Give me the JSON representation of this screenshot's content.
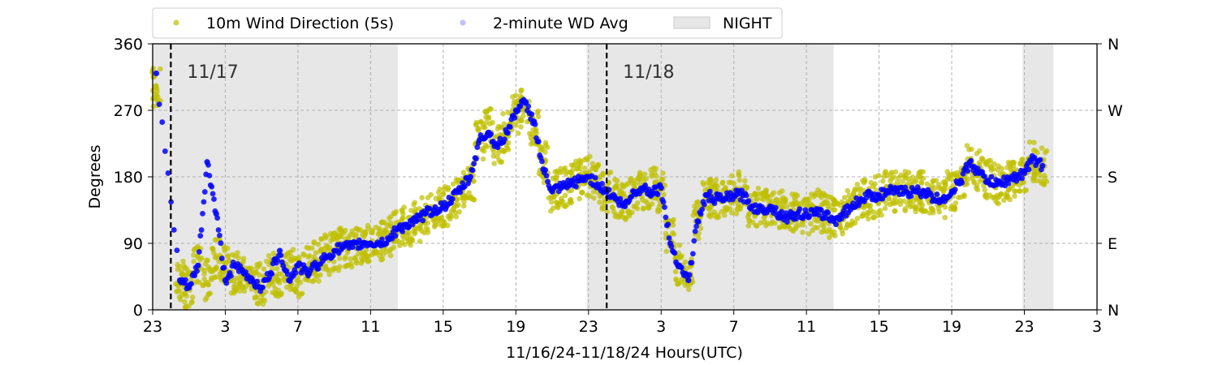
{
  "chart_data": {
    "type": "scatter",
    "xlabel": "11/16/24-11/18/24  Hours(UTC)",
    "ylabel": "Degrees",
    "x_range_hours": [
      23,
      75
    ],
    "x_ticks": [
      {
        "hour": 23,
        "label": "23"
      },
      {
        "hour": 27,
        "label": "3"
      },
      {
        "hour": 31,
        "label": "7"
      },
      {
        "hour": 35,
        "label": "11"
      },
      {
        "hour": 39,
        "label": "15"
      },
      {
        "hour": 43,
        "label": "19"
      },
      {
        "hour": 47,
        "label": "23"
      },
      {
        "hour": 51,
        "label": "3"
      },
      {
        "hour": 55,
        "label": "7"
      },
      {
        "hour": 59,
        "label": "11"
      },
      {
        "hour": 63,
        "label": "15"
      },
      {
        "hour": 67,
        "label": "19"
      },
      {
        "hour": 71,
        "label": "23"
      },
      {
        "hour": 75,
        "label": "3"
      }
    ],
    "ylim": [
      0,
      360
    ],
    "y_ticks": [
      0,
      90,
      180,
      270,
      360
    ],
    "y2_ticks": [
      {
        "value": 0,
        "label": "N"
      },
      {
        "value": 90,
        "label": "E"
      },
      {
        "value": 180,
        "label": "S"
      },
      {
        "value": 270,
        "label": "W"
      },
      {
        "value": 360,
        "label": "N"
      }
    ],
    "grid": true,
    "legend": {
      "placement": "top-left",
      "entries": [
        {
          "label": "10m Wind Direction (5s)",
          "color": "#bfbf00"
        },
        {
          "label": "2-minute WD Avg",
          "color": "#0000ff"
        },
        {
          "label": "NIGHT",
          "color": "#d3d3d3"
        }
      ]
    },
    "night_periods_hours": [
      [
        23,
        36.5
      ],
      [
        46.9,
        60.5
      ],
      [
        70.9,
        72.6
      ]
    ],
    "day_markers": [
      {
        "hour": 24,
        "label": "11/17"
      },
      {
        "hour": 48,
        "label": "11/18"
      }
    ],
    "series": [
      {
        "name": "10m Wind Direction (5s)",
        "color": "#bfbf00",
        "hours": [
          23.2,
          24.5,
          25,
          25.5,
          26,
          26.5,
          27,
          27.5,
          28,
          28.5,
          29,
          29.5,
          30,
          30.5,
          31,
          31.5,
          32,
          32.5,
          33,
          33.5,
          34,
          34.5,
          35,
          35.5,
          36,
          36.5,
          37,
          37.5,
          38,
          38.5,
          39,
          39.5,
          40,
          40.5,
          41,
          41.5,
          42,
          42.5,
          43,
          43.5,
          44,
          44.5,
          45,
          45.5,
          46,
          46.5,
          47,
          47.5,
          48,
          48.5,
          49,
          49.5,
          50,
          50.5,
          51,
          51.5,
          52,
          52.5,
          53,
          53.5,
          54,
          54.5,
          55,
          55.5,
          56,
          56.5,
          57,
          57.5,
          58,
          58.5,
          59,
          59.5,
          60,
          60.5,
          61,
          61.5,
          62,
          62.5,
          63,
          63.5,
          64,
          64.5,
          65,
          65.5,
          66,
          66.5,
          67,
          67.5,
          68,
          68.5,
          69,
          69.5,
          70,
          70.5,
          71,
          71.5,
          72
        ],
        "degrees": [
          300,
          40,
          30,
          60,
          40,
          70,
          60,
          50,
          45,
          40,
          35,
          50,
          40,
          55,
          45,
          60,
          65,
          75,
          80,
          85,
          85,
          90,
          90,
          95,
          100,
          110,
          115,
          120,
          125,
          135,
          140,
          150,
          160,
          175,
          230,
          245,
          225,
          240,
          265,
          275,
          250,
          200,
          160,
          165,
          170,
          175,
          180,
          170,
          160,
          150,
          145,
          155,
          160,
          165,
          160,
          100,
          60,
          50,
          120,
          150,
          150,
          150,
          155,
          160,
          140,
          140,
          140,
          135,
          130,
          130,
          130,
          135,
          130,
          125,
          130,
          140,
          150,
          150,
          155,
          160,
          160,
          160,
          160,
          160,
          150,
          150,
          160,
          175,
          195,
          190,
          175,
          170,
          175,
          180,
          185,
          200,
          195,
          185,
          180
        ]
      },
      {
        "name": "2-minute WD Avg",
        "color": "#0000ff",
        "hours": [
          23.2,
          24.5,
          25,
          25.5,
          26,
          26.5,
          27,
          27.5,
          28,
          28.5,
          29,
          29.5,
          30,
          30.5,
          31,
          31.5,
          32,
          32.5,
          33,
          33.5,
          34,
          34.5,
          35,
          35.5,
          36,
          36.5,
          37,
          37.5,
          38,
          38.5,
          39,
          39.5,
          40,
          40.5,
          41,
          41.5,
          42,
          42.5,
          43,
          43.5,
          44,
          44.5,
          45,
          45.5,
          46,
          46.5,
          47,
          47.5,
          48,
          48.5,
          49,
          49.5,
          50,
          50.5,
          51,
          51.5,
          52,
          52.5,
          53,
          53.5,
          54,
          54.5,
          55,
          55.5,
          56,
          56.5,
          57,
          57.5,
          58,
          58.5,
          59,
          59.5,
          60,
          60.5,
          61,
          61.5,
          62,
          62.5,
          63,
          63.5,
          64,
          64.5,
          65,
          65.5,
          66,
          66.5,
          67,
          67.5,
          68,
          68.5,
          69,
          69.5,
          70,
          70.5,
          71,
          71.5,
          72
        ],
        "degrees": [
          320,
          40,
          30,
          60,
          200,
          130,
          40,
          60,
          50,
          40,
          30,
          50,
          80,
          40,
          60,
          50,
          60,
          70,
          80,
          85,
          85,
          90,
          90,
          90,
          95,
          110,
          115,
          120,
          130,
          135,
          140,
          150,
          165,
          180,
          230,
          240,
          220,
          240,
          270,
          280,
          255,
          190,
          160,
          165,
          170,
          175,
          180,
          170,
          160,
          150,
          140,
          160,
          165,
          160,
          165,
          90,
          60,
          40,
          120,
          155,
          150,
          150,
          155,
          155,
          140,
          135,
          140,
          130,
          125,
          130,
          130,
          130,
          130,
          120,
          130,
          140,
          150,
          155,
          155,
          160,
          160,
          160,
          160,
          160,
          150,
          150,
          160,
          175,
          200,
          185,
          175,
          170,
          175,
          180,
          185,
          205,
          195,
          185,
          180
        ]
      }
    ]
  }
}
